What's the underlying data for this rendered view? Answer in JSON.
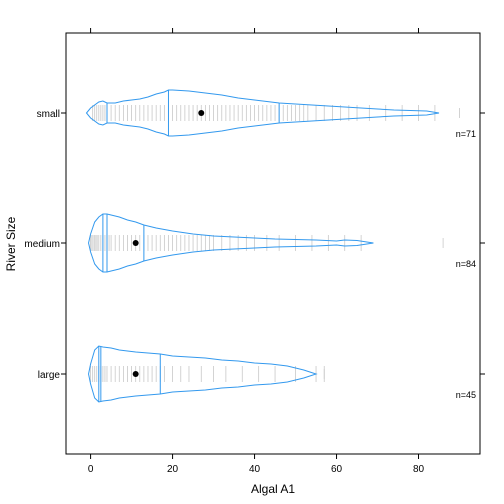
{
  "chart_data": {
    "type": "bean",
    "title": "",
    "xlabel": "Algal A1",
    "ylabel": "River Size",
    "xlim": [
      -6,
      95
    ],
    "x_ticks": [
      0,
      20,
      40,
      60,
      80
    ],
    "x_tick_labels": [
      "0",
      "20",
      "40",
      "60",
      "80"
    ],
    "colors": {
      "outline": "#3399ee",
      "rug": "#c8c8c8",
      "mean": "#000000",
      "axis": "#000000"
    },
    "categories": [
      {
        "name": "small",
        "n_label": "n=71",
        "mean": 27,
        "quartiles": [
          4,
          19,
          46
        ],
        "rug": [
          0.5,
          1,
          1.5,
          2,
          2.5,
          3,
          3.5,
          4,
          5,
          6,
          7,
          8,
          9,
          10,
          11,
          12,
          13,
          14,
          15,
          16,
          17,
          18,
          19,
          20,
          21,
          22,
          23,
          24,
          25,
          26,
          27,
          28,
          29,
          30,
          31,
          32,
          33,
          34,
          35,
          36,
          37,
          38,
          39,
          40,
          41,
          42,
          43,
          44,
          45,
          46,
          47,
          48,
          49,
          50,
          51,
          52,
          53,
          55,
          57,
          59,
          61,
          63,
          65,
          68,
          72,
          76,
          80,
          84
        ],
        "outlier": 90,
        "density": [
          [
            -1,
            0
          ],
          [
            0,
            5
          ],
          [
            2,
            11
          ],
          [
            3,
            12
          ],
          [
            4,
            10
          ],
          [
            6,
            10
          ],
          [
            8,
            12
          ],
          [
            10,
            13
          ],
          [
            12,
            14
          ],
          [
            14,
            16
          ],
          [
            16,
            19
          ],
          [
            18,
            21
          ],
          [
            19,
            23
          ],
          [
            20,
            23
          ],
          [
            24,
            22
          ],
          [
            28,
            20
          ],
          [
            32,
            18
          ],
          [
            36,
            15
          ],
          [
            40,
            13
          ],
          [
            44,
            11
          ],
          [
            46,
            10
          ],
          [
            50,
            9
          ],
          [
            54,
            8
          ],
          [
            58,
            7
          ],
          [
            62,
            6
          ],
          [
            66,
            5
          ],
          [
            70,
            4
          ],
          [
            74,
            3
          ],
          [
            78,
            2.5
          ],
          [
            82,
            2
          ],
          [
            85,
            0
          ]
        ]
      },
      {
        "name": "medium",
        "n_label": "n=84",
        "mean": 11,
        "quartiles": [
          3,
          4,
          13
        ],
        "rug": [
          0,
          0.3,
          0.6,
          1,
          1.3,
          1.6,
          2,
          2.5,
          3,
          3.5,
          4,
          4.5,
          5,
          6,
          7,
          8,
          9,
          10,
          11,
          12,
          13,
          14,
          15,
          16,
          17,
          18,
          19,
          20,
          21,
          22,
          23,
          24,
          25,
          26,
          27,
          28,
          29,
          30,
          32,
          34,
          36,
          38,
          40,
          43,
          46,
          50,
          54,
          58,
          62,
          66
        ],
        "outlier": 86,
        "density": [
          [
            -0.5,
            0
          ],
          [
            0,
            9
          ],
          [
            1,
            21
          ],
          [
            2,
            26
          ],
          [
            3,
            29
          ],
          [
            4,
            29
          ],
          [
            5,
            28
          ],
          [
            7,
            26
          ],
          [
            9,
            23
          ],
          [
            11,
            21
          ],
          [
            13,
            18
          ],
          [
            16,
            15
          ],
          [
            20,
            12
          ],
          [
            25,
            9
          ],
          [
            30,
            7
          ],
          [
            35,
            6
          ],
          [
            40,
            5
          ],
          [
            45,
            4
          ],
          [
            50,
            3.5
          ],
          [
            55,
            3
          ],
          [
            60,
            2
          ],
          [
            62,
            3
          ],
          [
            65,
            2.5
          ],
          [
            69,
            0
          ]
        ]
      },
      {
        "name": "large",
        "n_label": "n=45",
        "mean": 11,
        "quartiles": [
          2,
          2.5,
          17
        ],
        "rug": [
          0,
          0.5,
          1,
          1.5,
          2,
          2.5,
          3,
          3.5,
          4,
          5,
          6,
          7,
          8,
          9,
          10,
          11,
          12,
          13,
          14,
          15,
          16,
          17,
          18,
          20,
          22,
          24,
          27,
          30,
          33,
          37,
          41,
          45,
          50,
          55,
          57
        ],
        "outlier": 57,
        "density": [
          [
            -0.5,
            0
          ],
          [
            0,
            10
          ],
          [
            1,
            24
          ],
          [
            2,
            28
          ],
          [
            3,
            27
          ],
          [
            5,
            26
          ],
          [
            7,
            24
          ],
          [
            9,
            23
          ],
          [
            11,
            22
          ],
          [
            14,
            21
          ],
          [
            17,
            20
          ],
          [
            20,
            18
          ],
          [
            24,
            17
          ],
          [
            28,
            16
          ],
          [
            32,
            14
          ],
          [
            36,
            13
          ],
          [
            40,
            11
          ],
          [
            44,
            10
          ],
          [
            48,
            8
          ],
          [
            52,
            4
          ],
          [
            55,
            0
          ]
        ]
      }
    ]
  }
}
